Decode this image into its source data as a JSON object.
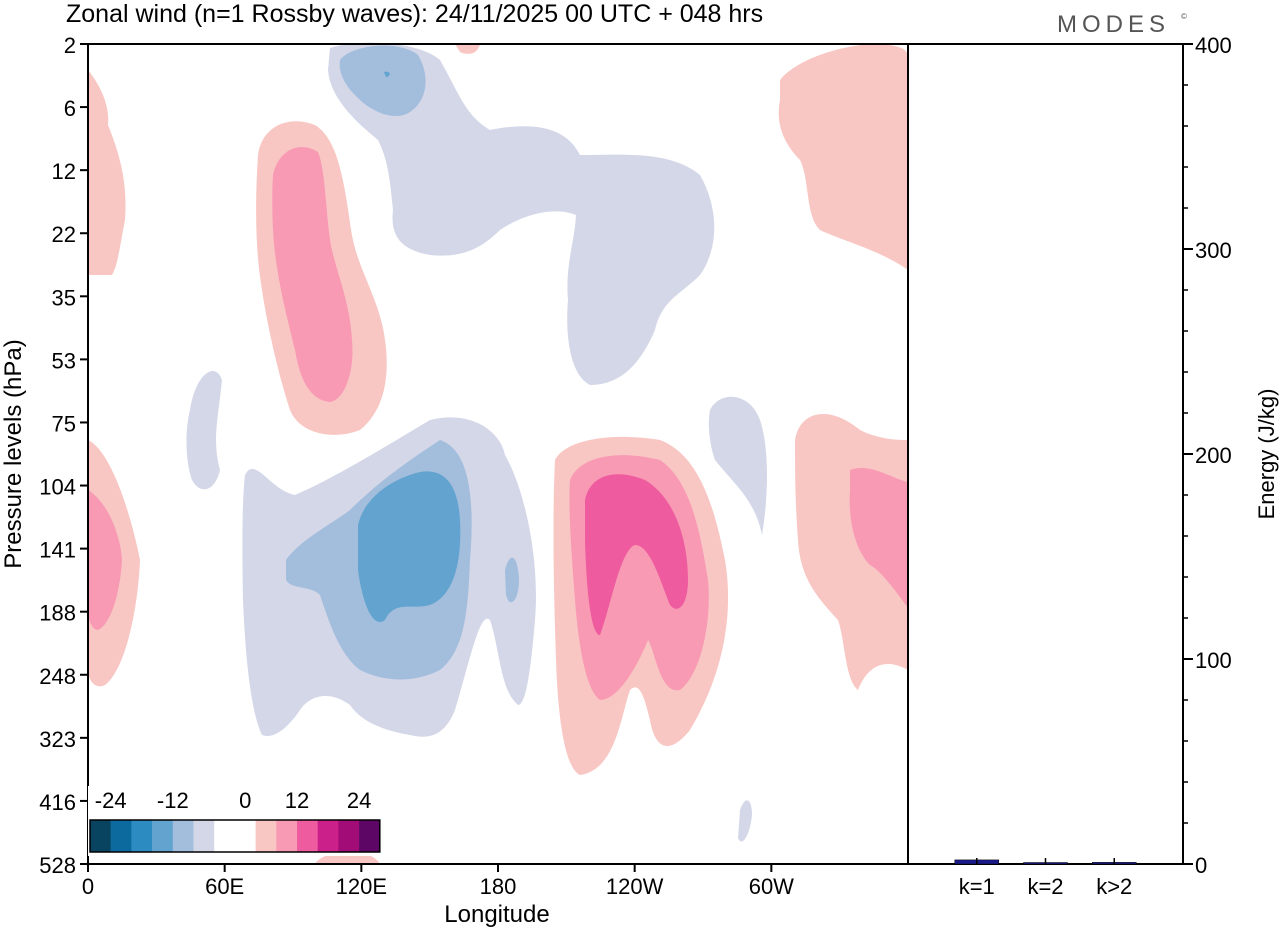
{
  "header": {
    "title": "Zonal wind (n=1 Rossby waves):  24/11/2025  00 UTC  + 048 hrs",
    "brand": "MODES",
    "brand_mark": "©"
  },
  "chart_data": [
    {
      "type": "heatmap",
      "name": "zonal-wind-contour",
      "xlabel": "Longitude",
      "ylabel": "Pressure levels (hPa)",
      "x_ticks": [
        "0",
        "60E",
        "120E",
        "180",
        "120W",
        "60W"
      ],
      "y_ticks": [
        "2",
        "6",
        "12",
        "22",
        "35",
        "53",
        "75",
        "104",
        "141",
        "188",
        "248",
        "323",
        "416",
        "528"
      ],
      "colorbar": {
        "labels": [
          "-24",
          "-12",
          "0",
          "12",
          "24"
        ],
        "colors": [
          "#08445f",
          "#0d6a9e",
          "#2c8bc0",
          "#62a4cf",
          "#a3bddc",
          "#d4d7e8",
          "#ffffff",
          "#ffffff",
          "#f9c7c3",
          "#f89ab4",
          "#ee5c9f",
          "#cb1f8a",
          "#a10c76",
          "#5e0665"
        ]
      }
    },
    {
      "type": "bar",
      "name": "energy-bars",
      "categories": [
        "k=1",
        "k=2",
        "k>2"
      ],
      "values": [
        2,
        0.5,
        0.8
      ],
      "ylabel": "Energy (J/kg)",
      "ylim": [
        0,
        400
      ],
      "y_ticks": [
        "0",
        "100",
        "200",
        "300",
        "400"
      ],
      "bar_color": "#1a1a8c"
    }
  ]
}
